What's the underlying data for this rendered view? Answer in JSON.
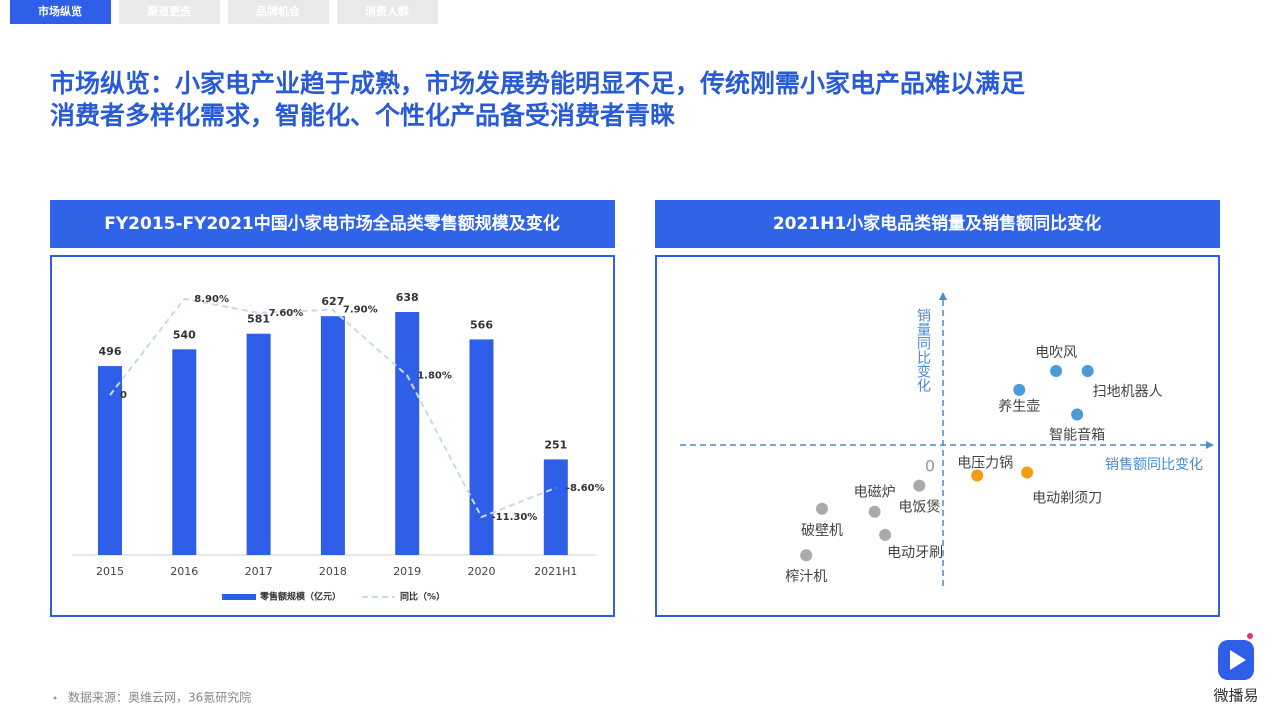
{
  "tabs": [
    "市场纵览",
    "渠道更迭",
    "品牌机会",
    "消费人群"
  ],
  "headline": "市场纵览：小家电产业趋于成熟，市场发展势能明显不足，传统刚需小家电产品难以满足消费者多样化需求，智能化、个性化产品备受消费者青睐",
  "source": "数据来源：奥维云网，36氪研究院",
  "logo": "微播易",
  "chart_data": [
    {
      "type": "bar_line",
      "title": "FY2015-FY2021中国小家电市场全品类零售额规模及变化",
      "categories": [
        "2015",
        "2016",
        "2017",
        "2018",
        "2019",
        "2020",
        "2021H1"
      ],
      "series": [
        {
          "name": "零售额规模（亿元）",
          "type": "bar",
          "color": "#2f5fe8",
          "values": [
            496,
            540,
            581,
            627,
            638,
            566,
            251
          ]
        },
        {
          "name": "同比（%）",
          "type": "line",
          "axis": "y2",
          "color": "#c5dbf3",
          "values": [
            0,
            8.9,
            7.6,
            7.9,
            1.8,
            -11.3,
            -8.6
          ],
          "value_labels": [
            "0",
            "8.90%",
            "7.60%",
            "7.90%",
            "1.80%",
            "-11.30%",
            "-8.60%"
          ]
        }
      ]
    },
    {
      "type": "quadrant",
      "title": "2021H1小家电品类销量及销售额同比变化",
      "xlabel": "销售额同比变化",
      "ylabel": "销量同比变化",
      "origin_label": "0",
      "xlim": [
        -10,
        10
      ],
      "ylim": [
        -10,
        10
      ],
      "points": [
        {
          "label": "电吹风",
          "x": 4.3,
          "y": 5.1,
          "color": "#4a9bd8"
        },
        {
          "label": "扫地机器人",
          "x": 5.5,
          "y": 5.1,
          "color": "#4a9bd8"
        },
        {
          "label": "养生壶",
          "x": 2.9,
          "y": 3.8,
          "color": "#4a9bd8"
        },
        {
          "label": "智能音箱",
          "x": 5.1,
          "y": 2.1,
          "color": "#4a9bd8"
        },
        {
          "label": "电压力锅",
          "x": 1.3,
          "y": -2.1,
          "color": "#f39c12"
        },
        {
          "label": "电动剃须刀",
          "x": 3.2,
          "y": -1.9,
          "color": "#f39c12"
        },
        {
          "label": "电饭煲",
          "x": -0.9,
          "y": -2.8,
          "color": "#aaaaaa"
        },
        {
          "label": "电磁炉",
          "x": -2.6,
          "y": -4.6,
          "color": "#aaaaaa"
        },
        {
          "label": "破壁机",
          "x": -4.6,
          "y": -4.4,
          "color": "#aaaaaa"
        },
        {
          "label": "电动牙刷",
          "x": -2.2,
          "y": -6.2,
          "color": "#aaaaaa"
        },
        {
          "label": "榨汁机",
          "x": -5.2,
          "y": -7.6,
          "color": "#aaaaaa"
        }
      ]
    }
  ]
}
